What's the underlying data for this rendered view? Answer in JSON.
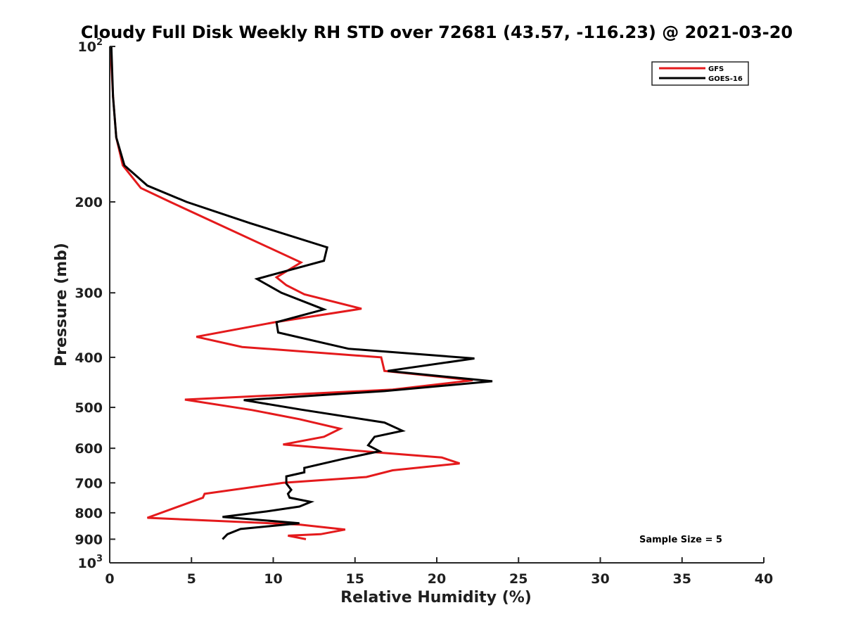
{
  "chart_data": {
    "type": "line",
    "title": "Cloudy Full Disk Weekly RH STD over 72681 (43.57, -116.23) @ 2021-03-20",
    "xlabel": "Relative Humidity (%)",
    "ylabel": "Pressure (mb)",
    "xlim": [
      0,
      40
    ],
    "ylim": [
      100,
      1000
    ],
    "yscale": "log",
    "y_inverted": true,
    "grid": false,
    "legend_position": "top-right",
    "x_ticks": [
      {
        "value": 0,
        "label": "0"
      },
      {
        "value": 5,
        "label": "5"
      },
      {
        "value": 10,
        "label": "10"
      },
      {
        "value": 15,
        "label": "15"
      },
      {
        "value": 20,
        "label": "20"
      },
      {
        "value": 25,
        "label": "25"
      },
      {
        "value": 30,
        "label": "30"
      },
      {
        "value": 35,
        "label": "35"
      },
      {
        "value": 40,
        "label": "40"
      }
    ],
    "y_ticks": [
      {
        "value": 100,
        "base": "10",
        "exp": "2"
      },
      {
        "value": 200,
        "label": "200"
      },
      {
        "value": 300,
        "label": "300"
      },
      {
        "value": 400,
        "label": "400"
      },
      {
        "value": 500,
        "label": "500"
      },
      {
        "value": 600,
        "label": "600"
      },
      {
        "value": 700,
        "label": "700"
      },
      {
        "value": 800,
        "label": "800"
      },
      {
        "value": 900,
        "label": "900"
      },
      {
        "value": 1000,
        "base": "10",
        "exp": "3"
      }
    ],
    "series": [
      {
        "name": "GFS",
        "color": "#e41a1c",
        "points": [
          [
            0.05,
            100
          ],
          [
            0.2,
            125
          ],
          [
            0.4,
            150
          ],
          [
            0.8,
            170
          ],
          [
            1.9,
            188
          ],
          [
            3.7,
            200
          ],
          [
            11.7,
            262
          ],
          [
            10.2,
            280
          ],
          [
            10.8,
            290
          ],
          [
            11.9,
            302
          ],
          [
            15.4,
            322
          ],
          [
            10.1,
            342
          ],
          [
            5.3,
            365
          ],
          [
            8.1,
            382
          ],
          [
            16.6,
            400
          ],
          [
            16.8,
            425
          ],
          [
            22.2,
            443
          ],
          [
            17.3,
            462
          ],
          [
            4.6,
            483
          ],
          [
            8.7,
            506
          ],
          [
            11.6,
            527
          ],
          [
            14.1,
            550
          ],
          [
            13.1,
            570
          ],
          [
            10.6,
            590
          ],
          [
            16.6,
            612
          ],
          [
            20.3,
            625
          ],
          [
            21.4,
            642
          ],
          [
            17.3,
            662
          ],
          [
            15.7,
            682
          ],
          [
            10.6,
            700
          ],
          [
            5.8,
            735
          ],
          [
            5.7,
            748
          ],
          [
            2.3,
            818
          ],
          [
            11.6,
            843
          ],
          [
            14.4,
            862
          ],
          [
            12.9,
            880
          ],
          [
            10.9,
            886
          ],
          [
            12.0,
            900
          ]
        ]
      },
      {
        "name": "GOES-16",
        "color": "#000000",
        "points": [
          [
            0.1,
            100
          ],
          [
            0.2,
            125
          ],
          [
            0.4,
            150
          ],
          [
            0.9,
            170
          ],
          [
            2.3,
            186
          ],
          [
            4.7,
            200
          ],
          [
            8.6,
            220
          ],
          [
            13.3,
            245
          ],
          [
            13.1,
            260
          ],
          [
            9.0,
            282
          ],
          [
            10.5,
            300
          ],
          [
            13.1,
            323
          ],
          [
            10.2,
            342
          ],
          [
            10.3,
            358
          ],
          [
            14.6,
            385
          ],
          [
            22.3,
            402
          ],
          [
            17.0,
            425
          ],
          [
            23.4,
            445
          ],
          [
            16.8,
            465
          ],
          [
            8.2,
            484
          ],
          [
            11.7,
            505
          ],
          [
            16.8,
            535
          ],
          [
            17.9,
            555
          ],
          [
            16.2,
            570
          ],
          [
            15.8,
            592
          ],
          [
            16.5,
            608
          ],
          [
            14.2,
            630
          ],
          [
            11.9,
            655
          ],
          [
            11.9,
            668
          ],
          [
            10.8,
            680
          ],
          [
            10.8,
            692
          ],
          [
            10.8,
            702
          ],
          [
            11.1,
            722
          ],
          [
            10.9,
            735
          ],
          [
            11.0,
            748
          ],
          [
            12.3,
            762
          ],
          [
            11.6,
            778
          ],
          [
            9.6,
            795
          ],
          [
            6.9,
            815
          ],
          [
            11.6,
            838
          ],
          [
            8.0,
            860
          ],
          [
            7.2,
            880
          ],
          [
            6.9,
            900
          ]
        ]
      }
    ],
    "annotation": "Sample Size = 5"
  }
}
